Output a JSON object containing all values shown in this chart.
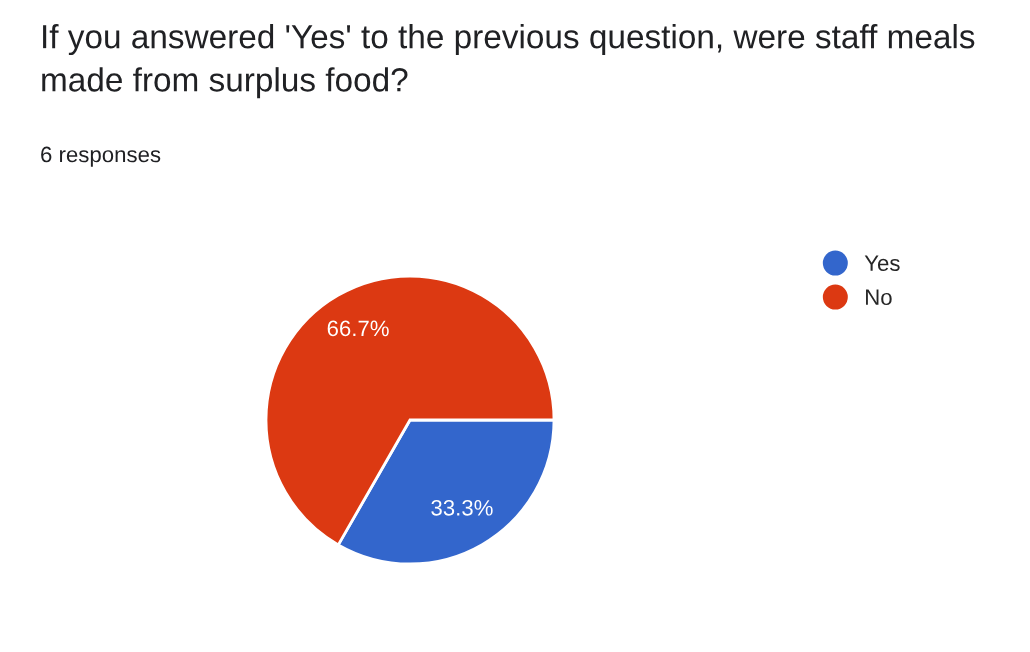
{
  "chart_data": {
    "type": "pie",
    "title": "If you answered 'Yes' to the previous question, were staff meals made from surplus food?",
    "subtitle": "6 responses",
    "categories": [
      "Yes",
      "No"
    ],
    "values": [
      33.3,
      66.7
    ],
    "colors": [
      "#3366cc",
      "#dc3912"
    ],
    "value_labels": [
      "33.3%",
      "66.7%"
    ],
    "legend": "top right"
  }
}
